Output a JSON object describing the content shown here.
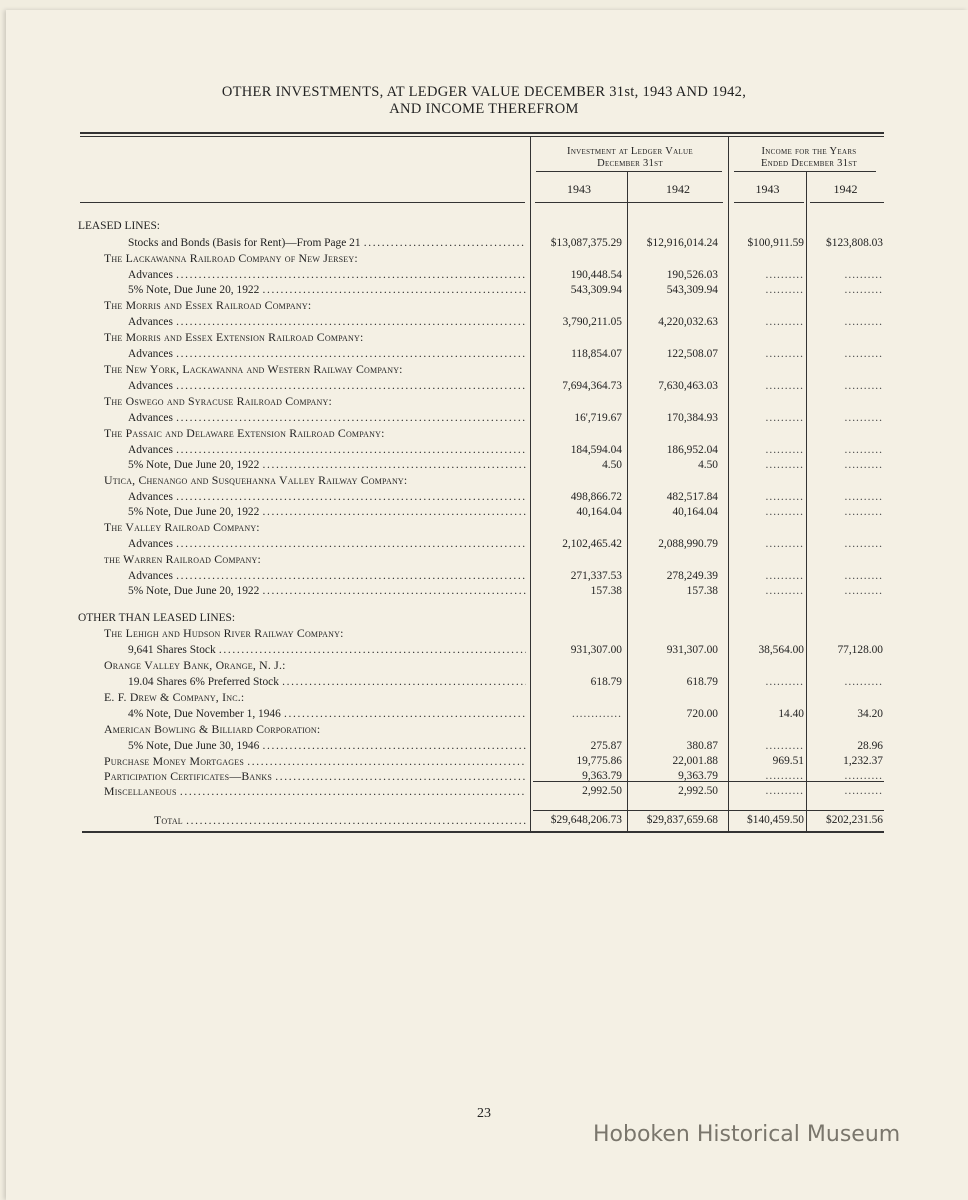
{
  "title_line1": "OTHER INVESTMENTS, AT LEDGER VALUE DECEMBER 31st, 1943 AND 1942,",
  "title_line2": "AND INCOME THEREFROM",
  "header": {
    "group1_line1": "Investment at Ledger Value",
    "group1_line2": "December 31st",
    "group2_line1": "Income for the Years",
    "group2_line2": "Ended December 31st",
    "years": [
      "1943",
      "1942",
      "1943",
      "1942"
    ]
  },
  "rows": [
    {
      "type": "section",
      "label": "LEASED LINES:"
    },
    {
      "type": "item2",
      "label": "Stocks and Bonds (Basis for Rent)—From Page 21",
      "values": [
        "$13,087,375.29",
        "$12,916,014.24",
        "$100,911.59",
        "$123,808.03"
      ]
    },
    {
      "type": "company",
      "label": "The Lackawanna Railroad Company of New Jersey:"
    },
    {
      "type": "item2",
      "label": "Advances",
      "values": [
        "190,448.54",
        "190,526.03",
        "..........",
        ".........."
      ]
    },
    {
      "type": "item2",
      "label": "5% Note, Due June 20, 1922",
      "values": [
        "543,309.94",
        "543,309.94",
        "..........",
        ".........."
      ]
    },
    {
      "type": "company",
      "label": "The Morris and Essex Railroad Company:"
    },
    {
      "type": "item2",
      "label": "Advances",
      "values": [
        "3,790,211.05",
        "4,220,032.63",
        "..........",
        ".........."
      ]
    },
    {
      "type": "company",
      "label": "The Morris and Essex Extension Railroad Company:"
    },
    {
      "type": "item2",
      "label": "Advances",
      "values": [
        "118,854.07",
        "122,508.07",
        "..........",
        ".........."
      ]
    },
    {
      "type": "company",
      "label": "The New York, Lackawanna and Western Railway Company:"
    },
    {
      "type": "item2",
      "label": "Advances",
      "values": [
        "7,694,364.73",
        "7,630,463.03",
        "..........",
        ".........."
      ]
    },
    {
      "type": "company",
      "label": "The Oswego and Syracuse Railroad Company:"
    },
    {
      "type": "item2",
      "label": "Advances",
      "values": [
        "16',719.67",
        "170,384.93",
        "..........",
        ".........."
      ]
    },
    {
      "type": "company",
      "label": "The Passaic and Delaware Extension Railroad Company:"
    },
    {
      "type": "item2",
      "label": "Advances",
      "values": [
        "184,594.04",
        "186,952.04",
        "..........",
        ".........."
      ]
    },
    {
      "type": "item2",
      "label": "5% Note, Due June 20, 1922",
      "values": [
        "4.50",
        "4.50",
        "..........",
        ".........."
      ]
    },
    {
      "type": "company",
      "label": "Utica, Chenango and Susquehanna Valley Railway Company:"
    },
    {
      "type": "item2",
      "label": "Advances",
      "values": [
        "498,866.72",
        "482,517.84",
        "..........",
        ".........."
      ]
    },
    {
      "type": "item2",
      "label": "5% Note, Due June 20, 1922",
      "values": [
        "40,164.04",
        "40,164.04",
        "..........",
        ".........."
      ]
    },
    {
      "type": "company",
      "label": "The Valley Railroad Company:"
    },
    {
      "type": "item2",
      "label": "Advances",
      "values": [
        "2,102,465.42",
        "2,088,990.79",
        "..........",
        ".........."
      ]
    },
    {
      "type": "company",
      "label": "the Warren Railroad Company:"
    },
    {
      "type": "item2",
      "label": "Advances",
      "values": [
        "271,337.53",
        "278,249.39",
        "..........",
        ".........."
      ]
    },
    {
      "type": "item2",
      "label": "5% Note, Due June 20, 1922",
      "values": [
        "157.38",
        "157.38",
        "..........",
        ".........."
      ]
    },
    {
      "type": "section",
      "label": "OTHER THAN LEASED LINES:"
    },
    {
      "type": "company",
      "label": "The Lehigh and Hudson River Railway Company:"
    },
    {
      "type": "item2",
      "label": "9,641 Shares Stock",
      "values": [
        "931,307.00",
        "931,307.00",
        "38,564.00",
        "77,128.00"
      ]
    },
    {
      "type": "company",
      "label": "Orange Valley Bank, Orange, N. J.:"
    },
    {
      "type": "item2",
      "label": "19.04 Shares 6% Preferred Stock",
      "values": [
        "618.79",
        "618.79",
        "..........",
        ".........."
      ]
    },
    {
      "type": "company",
      "label": "E. F. Drew & Company, Inc.:"
    },
    {
      "type": "item2",
      "label": "4% Note, Due November 1, 1946",
      "values": [
        ".............",
        "720.00",
        "14.40",
        "34.20"
      ]
    },
    {
      "type": "company",
      "label": "American Bowling & Billiard Corporation:"
    },
    {
      "type": "item2",
      "label": "5% Note, Due June 30, 1946",
      "values": [
        "275.87",
        "380.87",
        "..........",
        "28.96"
      ]
    },
    {
      "type": "item1",
      "label": "Purchase Money Mortgages",
      "values": [
        "19,775.86",
        "22,001.88",
        "969.51",
        "1,232.37"
      ]
    },
    {
      "type": "item1",
      "label": "Participation Certificates—Banks",
      "values": [
        "9,363.79",
        "9,363.79",
        "..........",
        ".........."
      ]
    },
    {
      "type": "item1",
      "label": "Miscellaneous",
      "values": [
        "2,992.50",
        "2,992.50",
        "..........",
        ".........."
      ]
    },
    {
      "type": "total",
      "label": "Total",
      "values": [
        "$29,648,206.73",
        "$29,837,659.68",
        "$140,459.50",
        "$202,231.56"
      ]
    }
  ],
  "page_number": "23",
  "watermark": "Hoboken Historical Museum",
  "colors": {
    "paper": "#f4f0e4",
    "ink": "#222222",
    "watermark": "#7a766c"
  }
}
